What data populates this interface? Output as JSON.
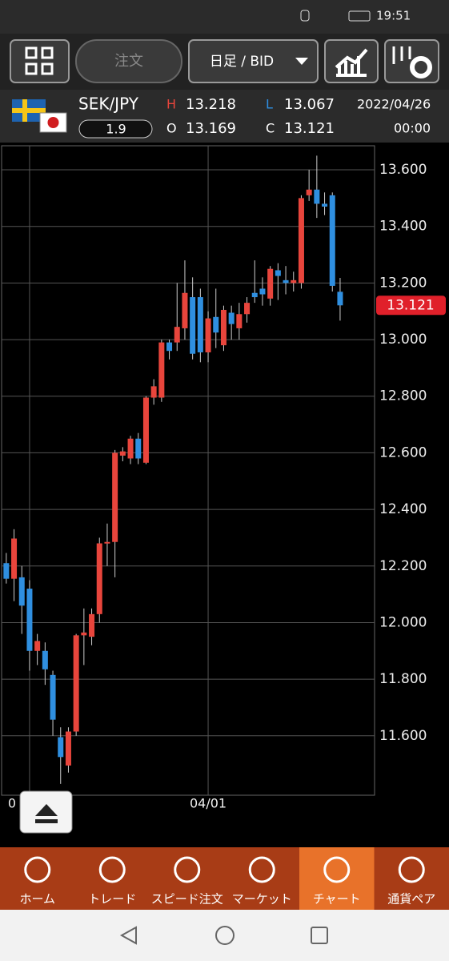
{
  "status_bar": {
    "time": "19:51"
  },
  "toolbar": {
    "order_button": "注文",
    "period_dropdown": "日足 / BID"
  },
  "quote_header": {
    "pair": "SEK/JPY",
    "spread": "1.9",
    "high_label": "H",
    "high": "13.218",
    "low_label": "L",
    "low": "13.067",
    "open_label": "O",
    "open": "13.169",
    "close_label": "C",
    "close": "13.121",
    "date": "2022/04/26",
    "time": "00:00"
  },
  "chart_data": {
    "type": "candlestick",
    "categories": [
      null,
      null,
      null,
      "0",
      null,
      null,
      null,
      null,
      null,
      null,
      null,
      null,
      null,
      null,
      null,
      null,
      null,
      null,
      null,
      null,
      null,
      null,
      null,
      null,
      null,
      null,
      "04/01",
      null,
      null,
      null,
      null,
      null,
      null,
      null,
      null,
      null,
      null,
      null,
      null,
      null,
      null,
      null,
      null,
      null
    ],
    "open": [
      12.21,
      12.155,
      12.16,
      12.12,
      11.9,
      11.9,
      11.815,
      11.595,
      11.495,
      11.615,
      11.955,
      11.95,
      12.03,
      12.28,
      12.285,
      12.59,
      12.58,
      12.65,
      12.565,
      12.795,
      12.795,
      12.99,
      12.99,
      13.04,
      13.15,
      13.15,
      12.955,
      13.08,
      12.98,
      13.095,
      13.04,
      13.09,
      13.165,
      13.18,
      13.145,
      13.245,
      13.21,
      13.2,
      13.2,
      13.51,
      13.53,
      13.48,
      13.51,
      13.169
    ],
    "high": [
      12.246,
      12.33,
      12.2,
      12.15,
      11.96,
      11.93,
      11.83,
      11.63,
      11.63,
      11.96,
      12.05,
      12.05,
      12.3,
      12.35,
      12.61,
      12.62,
      12.66,
      12.67,
      12.8,
      12.86,
      13.0,
      13.0,
      13.2,
      13.28,
      13.22,
      13.18,
      13.1,
      13.18,
      13.12,
      13.12,
      13.13,
      13.15,
      13.28,
      13.22,
      13.26,
      13.27,
      13.26,
      13.24,
      13.51,
      13.6,
      13.65,
      13.52,
      13.52,
      13.218
    ],
    "low": [
      12.138,
      12.076,
      11.96,
      11.83,
      11.85,
      11.78,
      11.6,
      11.43,
      11.47,
      11.6,
      11.85,
      11.92,
      12.0,
      12.2,
      12.16,
      12.57,
      12.56,
      12.56,
      12.56,
      12.77,
      12.78,
      12.93,
      12.96,
      13.0,
      12.93,
      12.92,
      12.92,
      12.97,
      12.96,
      13.0,
      13.0,
      13.06,
      13.13,
      13.12,
      13.12,
      13.14,
      13.16,
      13.17,
      13.18,
      13.49,
      13.43,
      13.44,
      13.17,
      13.067
    ],
    "close": [
      12.155,
      12.297,
      12.06,
      11.9,
      11.935,
      11.835,
      11.657,
      11.525,
      11.615,
      11.955,
      11.965,
      12.03,
      12.28,
      12.285,
      12.6,
      12.605,
      12.65,
      12.58,
      12.795,
      12.835,
      12.99,
      12.96,
      13.045,
      13.165,
      12.95,
      12.955,
      13.075,
      13.025,
      13.105,
      13.055,
      13.09,
      13.13,
      13.15,
      13.16,
      13.25,
      13.225,
      13.2,
      13.21,
      13.5,
      13.53,
      13.48,
      13.47,
      13.19,
      13.121
    ],
    "up_color": "#e8453c",
    "down_color": "#2f8fe0",
    "ylim": [
      11.39,
      13.685
    ],
    "yticks": [
      {
        "value": 11.6,
        "label": "11.600"
      },
      {
        "value": 11.8,
        "label": "11.800"
      },
      {
        "value": 12.0,
        "label": "12.000"
      },
      {
        "value": 12.2,
        "label": "12.200"
      },
      {
        "value": 12.4,
        "label": "12.400"
      },
      {
        "value": 12.6,
        "label": "12.600"
      },
      {
        "value": 12.8,
        "label": "12.800"
      },
      {
        "value": 13.0,
        "label": "13.000"
      },
      {
        "value": 13.2,
        "label": "13.200"
      },
      {
        "value": 13.4,
        "label": "13.400"
      },
      {
        "value": 13.6,
        "label": "13.600"
      }
    ],
    "grid": true,
    "last_price": {
      "value": 13.121,
      "label": "13.121"
    }
  },
  "bottom_nav": {
    "items": [
      "ホーム",
      "トレード",
      "スピード注文",
      "マーケット",
      "チャート",
      "通貨ペア"
    ],
    "active": 4
  }
}
